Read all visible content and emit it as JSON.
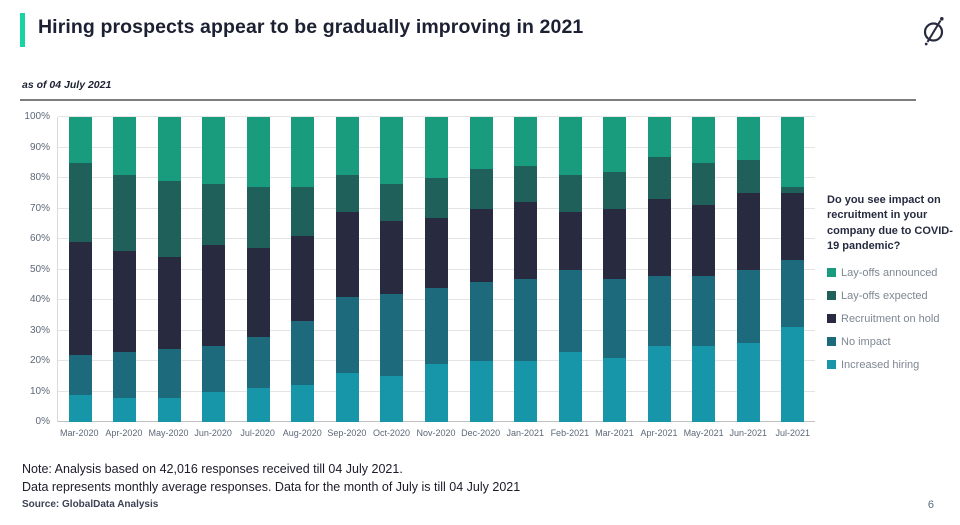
{
  "page": {
    "title": "Hiring prospects appear to be gradually improving in 2021",
    "as_of": "as of 04 July 2021",
    "page_number": "6",
    "accent_color": "#19d3a2"
  },
  "chart_data": {
    "type": "bar",
    "stacked": true,
    "title": "Do you see impact on recruitment in your company due to COVID-19 pandemic?",
    "categories": [
      "Mar-2020",
      "Apr-2020",
      "May-2020",
      "Jun-2020",
      "Jul-2020",
      "Aug-2020",
      "Sep-2020",
      "Oct-2020",
      "Nov-2020",
      "Dec-2020",
      "Jan-2021",
      "Feb-2021",
      "Mar-2021",
      "Apr-2021",
      "May-2021",
      "Jun-2021",
      "Jul-2021"
    ],
    "series": [
      {
        "name": "Increased hiring",
        "color": "#1896a9",
        "values": [
          9,
          8,
          8,
          10,
          11,
          12,
          16,
          15,
          19,
          20,
          20,
          23,
          21,
          25,
          25,
          26,
          31
        ]
      },
      {
        "name": "No impact",
        "color": "#1e6a7d",
        "values": [
          13,
          15,
          16,
          15,
          17,
          21,
          25,
          27,
          25,
          26,
          27,
          27,
          26,
          23,
          23,
          24,
          22
        ]
      },
      {
        "name": "Recruitment on hold",
        "color": "#282a40",
        "values": [
          37,
          33,
          30,
          33,
          29,
          28,
          28,
          24,
          23,
          24,
          25,
          19,
          23,
          25,
          23,
          25,
          22
        ]
      },
      {
        "name": "Lay-offs expected",
        "color": "#20605b",
        "values": [
          26,
          25,
          25,
          20,
          20,
          16,
          12,
          12,
          13,
          13,
          12,
          12,
          12,
          14,
          14,
          11,
          2
        ]
      },
      {
        "name": "Lay-offs announced",
        "color": "#199c7e",
        "values": [
          15,
          19,
          21,
          22,
          23,
          23,
          19,
          22,
          20,
          17,
          16,
          19,
          18,
          13,
          15,
          14,
          23
        ]
      }
    ],
    "ylabel": "",
    "ylim": [
      0,
      100
    ],
    "yticks": [
      "0%",
      "10%",
      "20%",
      "30%",
      "40%",
      "50%",
      "60%",
      "70%",
      "80%",
      "90%",
      "100%"
    ],
    "grid": true,
    "legend_position": "right"
  },
  "legend": {
    "question": "Do you see impact on recruitment in your company due to COVID-19 pandemic?",
    "items": [
      {
        "label": "Lay-offs announced",
        "color": "#199c7e"
      },
      {
        "label": "Lay-offs expected",
        "color": "#20605b"
      },
      {
        "label": "Recruitment on hold",
        "color": "#282a40"
      },
      {
        "label": "No impact",
        "color": "#1e6a7d"
      },
      {
        "label": "Increased hiring",
        "color": "#1896a9"
      }
    ]
  },
  "notes": {
    "line1": "Note: Analysis based on 42,016 responses received till 04 July 2021.",
    "line2": "Data represents monthly average responses. Data for the month of July is till 04 July 2021",
    "source": "Source: GlobalData Analysis"
  }
}
